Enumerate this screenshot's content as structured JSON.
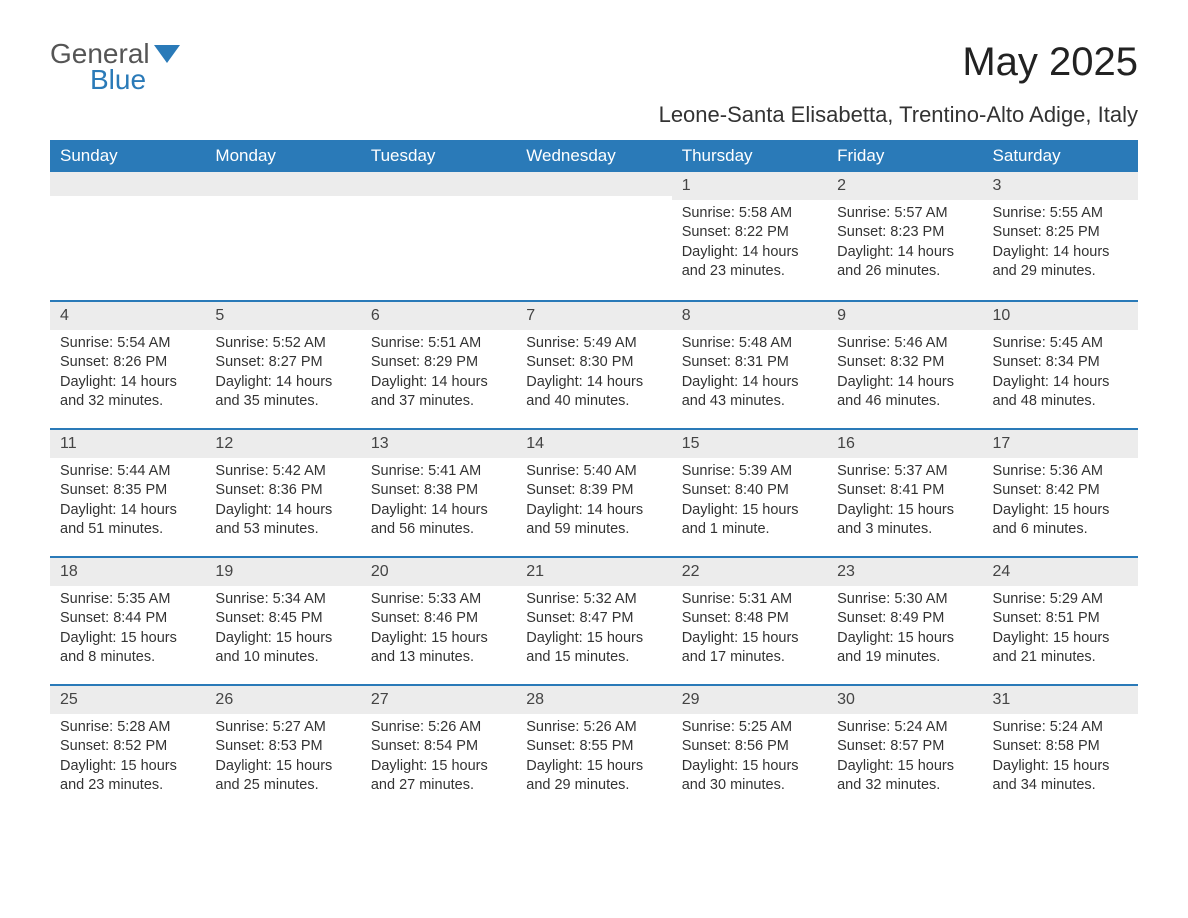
{
  "brand": {
    "part1": "General",
    "part2": "Blue"
  },
  "title": "May 2025",
  "subtitle": "Leone-Santa Elisabetta, Trentino-Alto Adige, Italy",
  "colors": {
    "header_bg": "#2a7ab8",
    "header_text": "#ffffff",
    "daynum_bg": "#ececec",
    "border": "#2a7ab8",
    "text": "#333333",
    "background": "#ffffff"
  },
  "day_headers": [
    "Sunday",
    "Monday",
    "Tuesday",
    "Wednesday",
    "Thursday",
    "Friday",
    "Saturday"
  ],
  "weeks": [
    [
      {
        "n": "",
        "sunrise": "",
        "sunset": "",
        "daylight": ""
      },
      {
        "n": "",
        "sunrise": "",
        "sunset": "",
        "daylight": ""
      },
      {
        "n": "",
        "sunrise": "",
        "sunset": "",
        "daylight": ""
      },
      {
        "n": "",
        "sunrise": "",
        "sunset": "",
        "daylight": ""
      },
      {
        "n": "1",
        "sunrise": "Sunrise: 5:58 AM",
        "sunset": "Sunset: 8:22 PM",
        "daylight": "Daylight: 14 hours and 23 minutes."
      },
      {
        "n": "2",
        "sunrise": "Sunrise: 5:57 AM",
        "sunset": "Sunset: 8:23 PM",
        "daylight": "Daylight: 14 hours and 26 minutes."
      },
      {
        "n": "3",
        "sunrise": "Sunrise: 5:55 AM",
        "sunset": "Sunset: 8:25 PM",
        "daylight": "Daylight: 14 hours and 29 minutes."
      }
    ],
    [
      {
        "n": "4",
        "sunrise": "Sunrise: 5:54 AM",
        "sunset": "Sunset: 8:26 PM",
        "daylight": "Daylight: 14 hours and 32 minutes."
      },
      {
        "n": "5",
        "sunrise": "Sunrise: 5:52 AM",
        "sunset": "Sunset: 8:27 PM",
        "daylight": "Daylight: 14 hours and 35 minutes."
      },
      {
        "n": "6",
        "sunrise": "Sunrise: 5:51 AM",
        "sunset": "Sunset: 8:29 PM",
        "daylight": "Daylight: 14 hours and 37 minutes."
      },
      {
        "n": "7",
        "sunrise": "Sunrise: 5:49 AM",
        "sunset": "Sunset: 8:30 PM",
        "daylight": "Daylight: 14 hours and 40 minutes."
      },
      {
        "n": "8",
        "sunrise": "Sunrise: 5:48 AM",
        "sunset": "Sunset: 8:31 PM",
        "daylight": "Daylight: 14 hours and 43 minutes."
      },
      {
        "n": "9",
        "sunrise": "Sunrise: 5:46 AM",
        "sunset": "Sunset: 8:32 PM",
        "daylight": "Daylight: 14 hours and 46 minutes."
      },
      {
        "n": "10",
        "sunrise": "Sunrise: 5:45 AM",
        "sunset": "Sunset: 8:34 PM",
        "daylight": "Daylight: 14 hours and 48 minutes."
      }
    ],
    [
      {
        "n": "11",
        "sunrise": "Sunrise: 5:44 AM",
        "sunset": "Sunset: 8:35 PM",
        "daylight": "Daylight: 14 hours and 51 minutes."
      },
      {
        "n": "12",
        "sunrise": "Sunrise: 5:42 AM",
        "sunset": "Sunset: 8:36 PM",
        "daylight": "Daylight: 14 hours and 53 minutes."
      },
      {
        "n": "13",
        "sunrise": "Sunrise: 5:41 AM",
        "sunset": "Sunset: 8:38 PM",
        "daylight": "Daylight: 14 hours and 56 minutes."
      },
      {
        "n": "14",
        "sunrise": "Sunrise: 5:40 AM",
        "sunset": "Sunset: 8:39 PM",
        "daylight": "Daylight: 14 hours and 59 minutes."
      },
      {
        "n": "15",
        "sunrise": "Sunrise: 5:39 AM",
        "sunset": "Sunset: 8:40 PM",
        "daylight": "Daylight: 15 hours and 1 minute."
      },
      {
        "n": "16",
        "sunrise": "Sunrise: 5:37 AM",
        "sunset": "Sunset: 8:41 PM",
        "daylight": "Daylight: 15 hours and 3 minutes."
      },
      {
        "n": "17",
        "sunrise": "Sunrise: 5:36 AM",
        "sunset": "Sunset: 8:42 PM",
        "daylight": "Daylight: 15 hours and 6 minutes."
      }
    ],
    [
      {
        "n": "18",
        "sunrise": "Sunrise: 5:35 AM",
        "sunset": "Sunset: 8:44 PM",
        "daylight": "Daylight: 15 hours and 8 minutes."
      },
      {
        "n": "19",
        "sunrise": "Sunrise: 5:34 AM",
        "sunset": "Sunset: 8:45 PM",
        "daylight": "Daylight: 15 hours and 10 minutes."
      },
      {
        "n": "20",
        "sunrise": "Sunrise: 5:33 AM",
        "sunset": "Sunset: 8:46 PM",
        "daylight": "Daylight: 15 hours and 13 minutes."
      },
      {
        "n": "21",
        "sunrise": "Sunrise: 5:32 AM",
        "sunset": "Sunset: 8:47 PM",
        "daylight": "Daylight: 15 hours and 15 minutes."
      },
      {
        "n": "22",
        "sunrise": "Sunrise: 5:31 AM",
        "sunset": "Sunset: 8:48 PM",
        "daylight": "Daylight: 15 hours and 17 minutes."
      },
      {
        "n": "23",
        "sunrise": "Sunrise: 5:30 AM",
        "sunset": "Sunset: 8:49 PM",
        "daylight": "Daylight: 15 hours and 19 minutes."
      },
      {
        "n": "24",
        "sunrise": "Sunrise: 5:29 AM",
        "sunset": "Sunset: 8:51 PM",
        "daylight": "Daylight: 15 hours and 21 minutes."
      }
    ],
    [
      {
        "n": "25",
        "sunrise": "Sunrise: 5:28 AM",
        "sunset": "Sunset: 8:52 PM",
        "daylight": "Daylight: 15 hours and 23 minutes."
      },
      {
        "n": "26",
        "sunrise": "Sunrise: 5:27 AM",
        "sunset": "Sunset: 8:53 PM",
        "daylight": "Daylight: 15 hours and 25 minutes."
      },
      {
        "n": "27",
        "sunrise": "Sunrise: 5:26 AM",
        "sunset": "Sunset: 8:54 PM",
        "daylight": "Daylight: 15 hours and 27 minutes."
      },
      {
        "n": "28",
        "sunrise": "Sunrise: 5:26 AM",
        "sunset": "Sunset: 8:55 PM",
        "daylight": "Daylight: 15 hours and 29 minutes."
      },
      {
        "n": "29",
        "sunrise": "Sunrise: 5:25 AM",
        "sunset": "Sunset: 8:56 PM",
        "daylight": "Daylight: 15 hours and 30 minutes."
      },
      {
        "n": "30",
        "sunrise": "Sunrise: 5:24 AM",
        "sunset": "Sunset: 8:57 PM",
        "daylight": "Daylight: 15 hours and 32 minutes."
      },
      {
        "n": "31",
        "sunrise": "Sunrise: 5:24 AM",
        "sunset": "Sunset: 8:58 PM",
        "daylight": "Daylight: 15 hours and 34 minutes."
      }
    ]
  ]
}
